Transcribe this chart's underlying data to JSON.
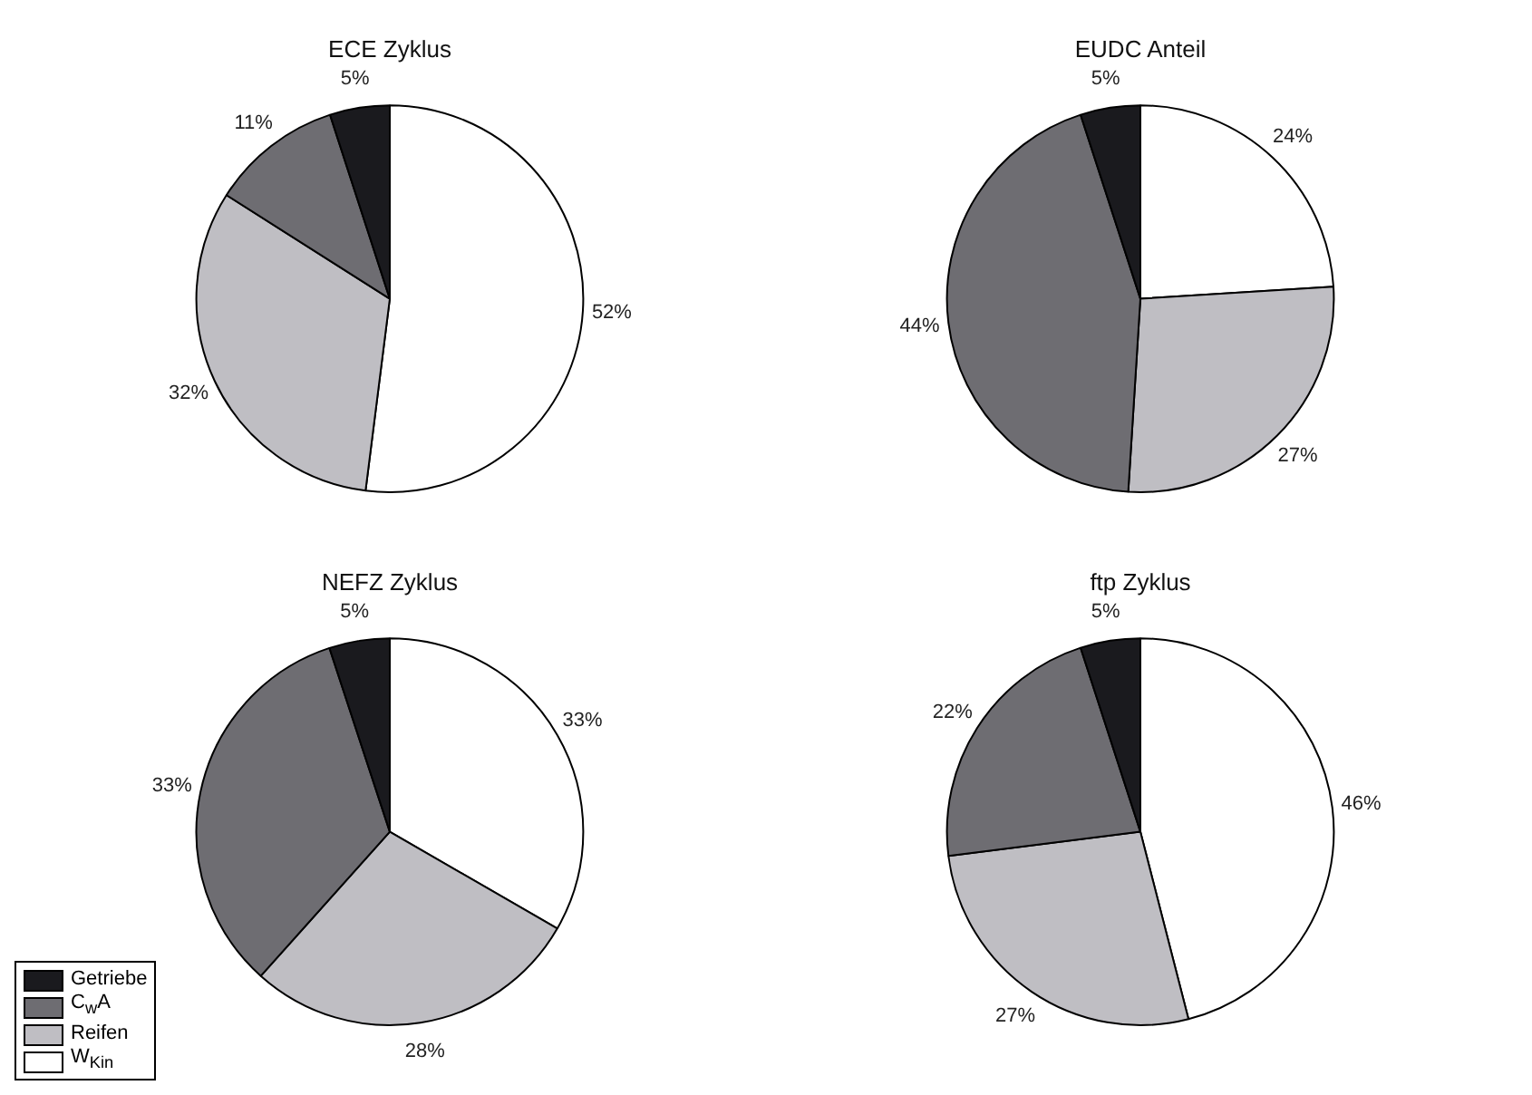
{
  "chart_data": [
    {
      "type": "pie",
      "title": "ECE Zyklus",
      "categories": [
        null,
        null,
        null,
        null
      ],
      "values": [
        52,
        32,
        11,
        5
      ],
      "colors": [
        "#ffffff",
        "#bfbec3",
        "#6e6d72",
        "#1a1a1e"
      ],
      "value_labels": [
        "52%",
        "32%",
        "11%",
        "5%"
      ]
    },
    {
      "type": "pie",
      "title": "EUDC Anteil",
      "categories": [
        null,
        null,
        null,
        null
      ],
      "values": [
        24,
        27,
        44,
        5
      ],
      "colors": [
        "#ffffff",
        "#bfbec3",
        "#6e6d72",
        "#1a1a1e"
      ],
      "value_labels": [
        "24%",
        "27%",
        "44%",
        "5%"
      ]
    },
    {
      "type": "pie",
      "title": "NEFZ Zyklus",
      "categories": [
        "W$_{Kin}$",
        "Reifen",
        "C$_{w}$A",
        "Getriebe"
      ],
      "values": [
        33,
        28,
        33,
        5
      ],
      "colors": [
        "#ffffff",
        "#bfbec3",
        "#6e6d72",
        "#1a1a1e"
      ],
      "value_labels": [
        "33%",
        "28%",
        "33%",
        "5%"
      ],
      "legend": "bottom left"
    },
    {
      "type": "pie",
      "title": "ftp Zyklus",
      "categories": [
        null,
        null,
        null,
        null
      ],
      "values": [
        46,
        27,
        22,
        5
      ],
      "colors": [
        "#ffffff",
        "#bfbec3",
        "#6e6d72",
        "#1a1a1e"
      ],
      "value_labels": [
        "46%",
        "27%",
        "22%",
        "5%"
      ]
    }
  ]
}
